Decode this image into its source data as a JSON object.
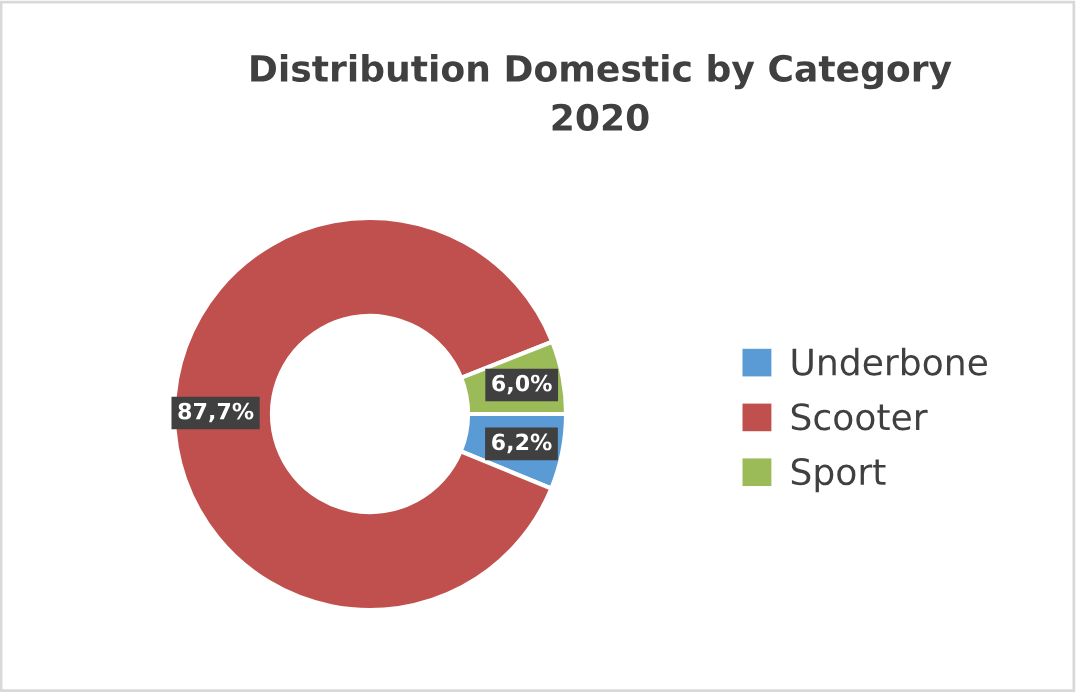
{
  "chart_data": {
    "type": "donut",
    "title": "Distribution Domestic by Category\n2020",
    "categories": [
      "Underbone",
      "Scooter",
      "Sport"
    ],
    "values": [
      6.2,
      87.7,
      6.0
    ],
    "colors": [
      "#5b9bd5",
      "#c0504d",
      "#9bbb59"
    ],
    "value_labels": [
      "6,2%",
      "87,7%",
      "6,0%"
    ],
    "legend": "right"
  }
}
